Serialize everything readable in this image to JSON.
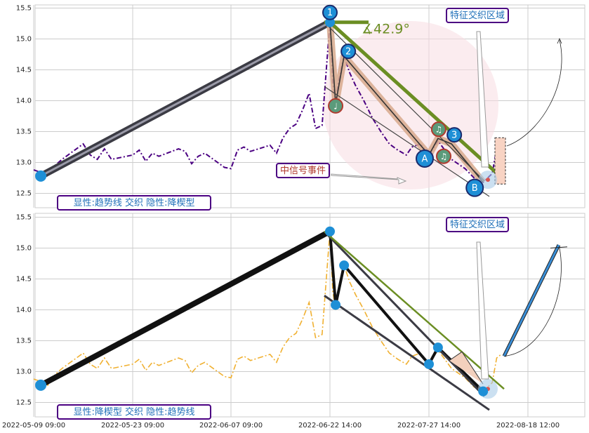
{
  "chart_data": [
    {
      "type": "line",
      "panel": "top",
      "ylim": [
        12.25,
        15.55
      ],
      "yticks": [
        "12.5",
        "13.0",
        "13.5",
        "14.0",
        "14.5",
        "15.0",
        "15.5"
      ],
      "grid": true,
      "colors": {
        "price": "#4b0082",
        "trend": "#6b8e23",
        "wave": "#333333",
        "point": "#1e8fd6"
      },
      "price_series": [
        [
          "2022-05-09 09:00",
          12.88
        ],
        [
          "2022-05-10 09:00",
          12.84
        ],
        [
          "2022-05-11 09:00",
          12.78
        ],
        [
          "2022-05-12 09:00",
          12.95
        ],
        [
          "2022-05-13 09:00",
          13.05
        ],
        [
          "2022-05-16 09:00",
          13.3
        ],
        [
          "2022-05-17 09:00",
          13.12
        ],
        [
          "2022-05-18 09:00",
          13.05
        ],
        [
          "2022-05-19 09:00",
          13.22
        ],
        [
          "2022-05-20 09:00",
          13.05
        ],
        [
          "2022-05-23 09:00",
          13.12
        ],
        [
          "2022-05-24 09:00",
          13.2
        ],
        [
          "2022-05-25 09:00",
          13.02
        ],
        [
          "2022-05-26 09:00",
          13.15
        ],
        [
          "2022-05-27 09:00",
          13.1
        ],
        [
          "2022-05-30 09:00",
          13.22
        ],
        [
          "2022-05-31 09:00",
          13.18
        ],
        [
          "2022-06-01 09:00",
          12.98
        ],
        [
          "2022-06-02 09:00",
          13.1
        ],
        [
          "2022-06-03 09:00",
          13.15
        ],
        [
          "2022-06-06 09:00",
          12.92
        ],
        [
          "2022-06-07 09:00",
          12.9
        ],
        [
          "2022-06-08 09:00",
          13.2
        ],
        [
          "2022-06-09 09:00",
          13.25
        ],
        [
          "2022-06-10 09:00",
          13.18
        ],
        [
          "2022-06-13 09:00",
          13.28
        ],
        [
          "2022-06-14 09:00",
          13.15
        ],
        [
          "2022-06-15 09:00",
          13.4
        ],
        [
          "2022-06-16 09:00",
          13.55
        ],
        [
          "2022-06-17 09:00",
          13.62
        ],
        [
          "2022-06-18 09:00",
          13.85
        ],
        [
          "2022-06-19 09:00",
          14.12
        ],
        [
          "2022-06-20 09:00",
          13.55
        ],
        [
          "2022-06-21 09:00",
          13.6
        ],
        [
          "2022-06-22 14:00",
          15.28
        ],
        [
          "2022-06-23 14:00",
          14.3
        ],
        [
          "2022-06-24 14:00",
          14.0
        ],
        [
          "2022-06-25 14:00",
          14.3
        ],
        [
          "2022-06-27 14:00",
          14.72
        ],
        [
          "2022-06-29 14:00",
          14.45
        ],
        [
          "2022-07-01 14:00",
          14.25
        ],
        [
          "2022-07-04 14:00",
          14.0
        ],
        [
          "2022-07-07 14:00",
          13.72
        ],
        [
          "2022-07-10 14:00",
          13.5
        ],
        [
          "2022-07-13 14:00",
          13.3
        ],
        [
          "2022-07-16 14:00",
          13.2
        ],
        [
          "2022-07-19 14:00",
          13.12
        ],
        [
          "2022-07-21 14:00",
          13.25
        ],
        [
          "2022-07-24 14:00",
          13.3
        ],
        [
          "2022-07-27 14:00",
          13.12
        ],
        [
          "2022-07-29 14:00",
          13.35
        ],
        [
          "2022-08-01 14:00",
          13.05
        ],
        [
          "2022-08-04 14:00",
          12.9
        ],
        [
          "2022-08-06 14:00",
          12.75
        ],
        [
          "2022-08-08 14:00",
          12.68
        ],
        [
          "2022-08-10 14:00",
          12.82
        ],
        [
          "2022-08-11 14:00",
          13.22
        ],
        [
          "2022-08-12 14:00",
          13.28
        ]
      ],
      "trend_lines": [
        {
          "x1": "2022-05-10 09:00",
          "y1": 12.78,
          "x2": "2022-06-22 14:00",
          "y2": 15.27
        },
        {
          "x1": "2022-06-22 14:00",
          "y1": 15.27,
          "x2": "2022-08-11 14:00",
          "y2": 12.7
        }
      ],
      "wave_points": [
        {
          "label": "1",
          "x": "2022-06-22 14:00",
          "y": 15.27
        },
        {
          "label": "♩",
          "x": "2022-06-24 14:00",
          "y": 13.95
        },
        {
          "label": "2",
          "x": "2022-06-27 14:00",
          "y": 14.72
        },
        {
          "label": "A",
          "x": "2022-07-27 14:00",
          "y": 13.12
        },
        {
          "label": "♫",
          "x": "2022-07-29 14:00",
          "y": 13.39
        },
        {
          "label": "3",
          "x": "2022-08-01 14:00",
          "y": 13.3
        },
        {
          "label": "B",
          "x": "2022-08-08 14:00",
          "y": 12.68
        }
      ],
      "annotations": {
        "angle": "∡42.9°",
        "feature_zone": "特征交织区域",
        "mid_signal": "中信号事件",
        "legend": "显性:趋势线 交织 隐性:降楔型"
      }
    },
    {
      "type": "line",
      "panel": "bottom",
      "ylim": [
        12.25,
        15.55
      ],
      "yticks": [
        "12.5",
        "13.0",
        "13.5",
        "14.0",
        "14.5",
        "15.0",
        "15.5"
      ],
      "grid": true,
      "colors": {
        "price": "#f0b030",
        "trend": "#6b8e23",
        "wave": "#111111",
        "point": "#1e8fd6",
        "projection": "#3a8fd8"
      },
      "wave_points": [
        {
          "x": "2022-05-10 09:00",
          "y": 12.78
        },
        {
          "x": "2022-06-22 14:00",
          "y": 15.27
        },
        {
          "x": "2022-06-24 14:00",
          "y": 14.08
        },
        {
          "x": "2022-06-27 14:00",
          "y": 14.72
        },
        {
          "x": "2022-07-27 14:00",
          "y": 13.12
        },
        {
          "x": "2022-07-29 14:00",
          "y": 13.39
        },
        {
          "x": "2022-08-08 14:00",
          "y": 12.68
        }
      ],
      "annotations": {
        "feature_zone": "特征交织区域",
        "legend": "显性:降楔型 交织 隐性:趋势线"
      }
    }
  ],
  "xaxis": {
    "ticks": [
      "2022-05-09 09:00",
      "2022-05-23 09:00",
      "2022-06-07 09:00",
      "2022-06-22 14:00",
      "2022-07-27 14:00",
      "2022-08-18 12:00"
    ]
  }
}
